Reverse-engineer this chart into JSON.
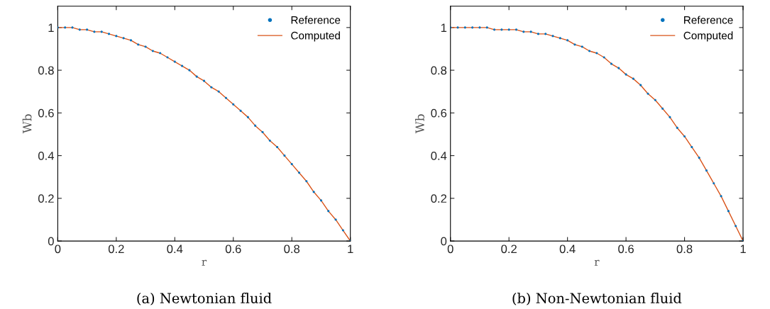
{
  "chart_data": [
    {
      "type": "line",
      "title": "(a) Newtonian fluid",
      "xlabel": "r",
      "ylabel": "Wb",
      "xlim": [
        0,
        1
      ],
      "ylim": [
        0,
        1.1
      ],
      "xticks": [
        0,
        0.2,
        0.4,
        0.6,
        0.8,
        1
      ],
      "yticks": [
        0,
        0.2,
        0.4,
        0.6,
        0.8,
        1
      ],
      "grid": false,
      "legend": "top right",
      "x": [
        0,
        0.025,
        0.05,
        0.075,
        0.1,
        0.125,
        0.15,
        0.175,
        0.2,
        0.225,
        0.25,
        0.275,
        0.3,
        0.325,
        0.35,
        0.375,
        0.4,
        0.425,
        0.45,
        0.475,
        0.5,
        0.525,
        0.55,
        0.575,
        0.6,
        0.625,
        0.65,
        0.675,
        0.7,
        0.725,
        0.75,
        0.775,
        0.8,
        0.825,
        0.85,
        0.875,
        0.9,
        0.925,
        0.95,
        0.975,
        1
      ],
      "series": [
        {
          "name": "Reference",
          "type": "scatter",
          "marker": "circle",
          "color": "#0072bd",
          "values": [
            1,
            1,
            1,
            0.99,
            0.99,
            0.98,
            0.98,
            0.97,
            0.96,
            0.95,
            0.94,
            0.92,
            0.91,
            0.89,
            0.88,
            0.86,
            0.84,
            0.82,
            0.8,
            0.77,
            0.75,
            0.72,
            0.7,
            0.67,
            0.64,
            0.61,
            0.58,
            0.54,
            0.51,
            0.47,
            0.44,
            0.4,
            0.36,
            0.32,
            0.28,
            0.23,
            0.19,
            0.14,
            0.1,
            0.05,
            0
          ]
        },
        {
          "name": "Computed",
          "line_style": "solid",
          "color": "#d95319",
          "values": [
            1,
            1,
            1,
            0.99,
            0.99,
            0.98,
            0.98,
            0.97,
            0.96,
            0.95,
            0.94,
            0.92,
            0.91,
            0.89,
            0.88,
            0.86,
            0.84,
            0.82,
            0.8,
            0.77,
            0.75,
            0.72,
            0.7,
            0.67,
            0.64,
            0.61,
            0.58,
            0.54,
            0.51,
            0.47,
            0.44,
            0.4,
            0.36,
            0.32,
            0.28,
            0.23,
            0.19,
            0.14,
            0.1,
            0.05,
            0
          ]
        }
      ]
    },
    {
      "type": "line",
      "title": "(b) Non-Newtonian fluid",
      "xlabel": "r",
      "ylabel": "Wb",
      "xlim": [
        0,
        1
      ],
      "ylim": [
        0,
        1.1
      ],
      "xticks": [
        0,
        0.2,
        0.4,
        0.6,
        0.8,
        1
      ],
      "yticks": [
        0,
        0.2,
        0.4,
        0.6,
        0.8,
        1
      ],
      "grid": false,
      "legend": "top right",
      "x": [
        0,
        0.025,
        0.05,
        0.075,
        0.1,
        0.125,
        0.15,
        0.175,
        0.2,
        0.225,
        0.25,
        0.275,
        0.3,
        0.325,
        0.35,
        0.375,
        0.4,
        0.425,
        0.45,
        0.475,
        0.5,
        0.525,
        0.55,
        0.575,
        0.6,
        0.625,
        0.65,
        0.675,
        0.7,
        0.725,
        0.75,
        0.775,
        0.8,
        0.825,
        0.85,
        0.875,
        0.9,
        0.925,
        0.95,
        0.975,
        1
      ],
      "series": [
        {
          "name": "Reference",
          "type": "scatter",
          "marker": "circle",
          "color": "#0072bd",
          "values": [
            1,
            1,
            1,
            1,
            1,
            1,
            0.99,
            0.99,
            0.99,
            0.99,
            0.98,
            0.98,
            0.97,
            0.97,
            0.96,
            0.95,
            0.94,
            0.92,
            0.91,
            0.89,
            0.88,
            0.86,
            0.83,
            0.81,
            0.78,
            0.76,
            0.73,
            0.69,
            0.66,
            0.62,
            0.58,
            0.53,
            0.49,
            0.44,
            0.39,
            0.33,
            0.27,
            0.21,
            0.14,
            0.07,
            0
          ]
        },
        {
          "name": "Computed",
          "line_style": "solid",
          "color": "#d95319",
          "values": [
            1,
            1,
            1,
            1,
            1,
            1,
            0.99,
            0.99,
            0.99,
            0.99,
            0.98,
            0.98,
            0.97,
            0.97,
            0.96,
            0.95,
            0.94,
            0.92,
            0.91,
            0.89,
            0.88,
            0.86,
            0.83,
            0.81,
            0.78,
            0.76,
            0.73,
            0.69,
            0.66,
            0.62,
            0.58,
            0.53,
            0.49,
            0.44,
            0.39,
            0.33,
            0.27,
            0.21,
            0.14,
            0.07,
            0
          ]
        }
      ]
    }
  ]
}
